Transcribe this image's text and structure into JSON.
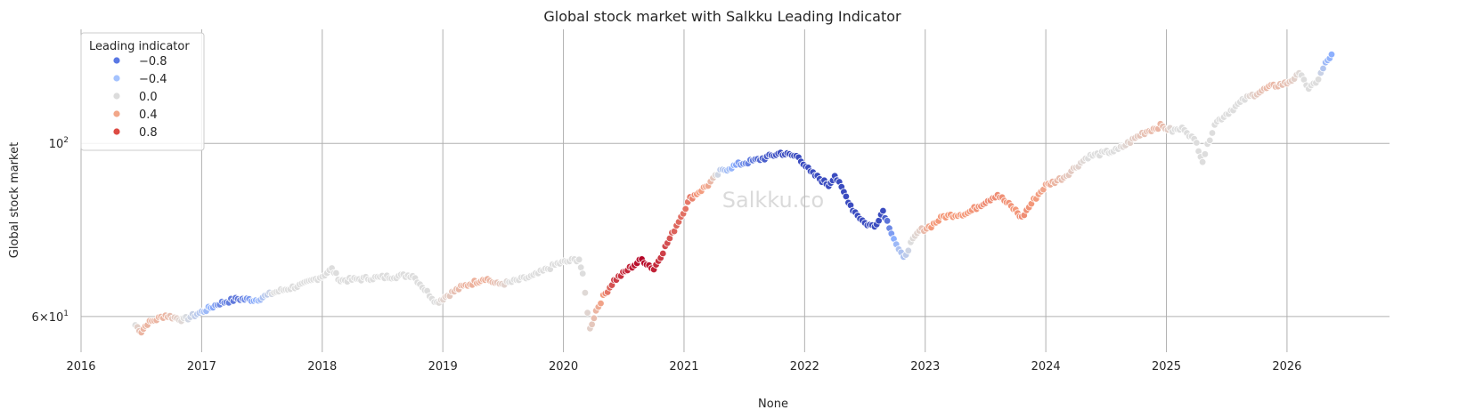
{
  "chart_data": {
    "type": "scatter",
    "title": "Global stock market with Salkku Leading Indicator",
    "xlabel": "None",
    "ylabel": "Global stock market",
    "y_scale": "log",
    "x_tick_labels": [
      "2016",
      "2017",
      "2018",
      "2019",
      "2020",
      "2021",
      "2022",
      "2023",
      "2024",
      "2025",
      "2026"
    ],
    "x_range_years": [
      2016.0,
      2026.85
    ],
    "y_range": [
      54,
      140
    ],
    "y_tick_values": [
      60,
      100
    ],
    "y_tick_labels": [
      {
        "base": "6",
        "times": "×",
        "ten": "10",
        "exp": "1"
      },
      {
        "base": "10",
        "exp": "2"
      }
    ],
    "grid": true,
    "legend": {
      "title": "Leading indicator",
      "placement": "top-left",
      "entries": [
        {
          "label": "−0.8",
          "value": -0.8,
          "color": "#5a78e4"
        },
        {
          "label": "−0.4",
          "value": -0.4,
          "color": "#a5c3fe"
        },
        {
          "label": "0.0",
          "value": 0.0,
          "color": "#dcdcdc"
        },
        {
          "label": "0.4",
          "value": 0.4,
          "color": "#f2a789"
        },
        {
          "label": "0.8",
          "value": 0.8,
          "color": "#dd4b43"
        }
      ]
    },
    "watermark": "Salkku.co",
    "color_scale": "coolwarm",
    "series_keyframes": [
      {
        "x": 2016.45,
        "y": 58.5,
        "indicator": 0.0
      },
      {
        "x": 2016.5,
        "y": 57.4,
        "indicator": 0.3
      },
      {
        "x": 2016.55,
        "y": 58.8,
        "indicator": 0.3
      },
      {
        "x": 2016.7,
        "y": 60.2,
        "indicator": 0.3
      },
      {
        "x": 2016.85,
        "y": 59.4,
        "indicator": 0.0
      },
      {
        "x": 2017.0,
        "y": 60.8,
        "indicator": -0.3
      },
      {
        "x": 2017.15,
        "y": 62.4,
        "indicator": -0.7
      },
      {
        "x": 2017.3,
        "y": 63.2,
        "indicator": -0.8
      },
      {
        "x": 2017.45,
        "y": 63.0,
        "indicator": -0.5
      },
      {
        "x": 2017.6,
        "y": 64.4,
        "indicator": 0.0
      },
      {
        "x": 2017.85,
        "y": 66.0,
        "indicator": 0.0
      },
      {
        "x": 2018.0,
        "y": 67.6,
        "indicator": 0.0
      },
      {
        "x": 2018.08,
        "y": 69.0,
        "indicator": 0.0
      },
      {
        "x": 2018.15,
        "y": 66.7,
        "indicator": 0.0
      },
      {
        "x": 2018.4,
        "y": 67.2,
        "indicator": 0.0
      },
      {
        "x": 2018.75,
        "y": 67.8,
        "indicator": 0.0
      },
      {
        "x": 2018.85,
        "y": 65.0,
        "indicator": 0.0
      },
      {
        "x": 2018.95,
        "y": 62.5,
        "indicator": 0.0
      },
      {
        "x": 2019.02,
        "y": 63.6,
        "indicator": 0.1
      },
      {
        "x": 2019.15,
        "y": 65.4,
        "indicator": 0.3
      },
      {
        "x": 2019.3,
        "y": 66.7,
        "indicator": 0.35
      },
      {
        "x": 2019.35,
        "y": 67.2,
        "indicator": 0.35
      },
      {
        "x": 2019.45,
        "y": 66.0,
        "indicator": 0.2
      },
      {
        "x": 2019.55,
        "y": 66.3,
        "indicator": 0.0
      },
      {
        "x": 2019.75,
        "y": 67.6,
        "indicator": 0.0
      },
      {
        "x": 2019.95,
        "y": 70.1,
        "indicator": 0.0
      },
      {
        "x": 2020.13,
        "y": 71.1,
        "indicator": 0.0
      },
      {
        "x": 2020.16,
        "y": 67.7,
        "indicator": 0.0
      },
      {
        "x": 2020.22,
        "y": 57.8,
        "indicator": 0.1
      },
      {
        "x": 2020.27,
        "y": 61.0,
        "indicator": 0.3
      },
      {
        "x": 2020.33,
        "y": 63.6,
        "indicator": 0.5
      },
      {
        "x": 2020.42,
        "y": 66.7,
        "indicator": 0.8
      },
      {
        "x": 2020.55,
        "y": 69.2,
        "indicator": 0.9
      },
      {
        "x": 2020.65,
        "y": 71.0,
        "indicator": 1.0
      },
      {
        "x": 2020.75,
        "y": 69.0,
        "indicator": 0.9
      },
      {
        "x": 2020.9,
        "y": 76.5,
        "indicator": 0.7
      },
      {
        "x": 2021.05,
        "y": 85.0,
        "indicator": 0.6
      },
      {
        "x": 2021.2,
        "y": 88.5,
        "indicator": 0.4
      },
      {
        "x": 2021.3,
        "y": 92.0,
        "indicator": -0.2
      },
      {
        "x": 2021.45,
        "y": 94.0,
        "indicator": -0.6
      },
      {
        "x": 2021.65,
        "y": 95.6,
        "indicator": -0.9
      },
      {
        "x": 2021.8,
        "y": 97.2,
        "indicator": -1.0
      },
      {
        "x": 2021.95,
        "y": 96.1,
        "indicator": -1.0
      },
      {
        "x": 2022.05,
        "y": 91.8,
        "indicator": -1.0
      },
      {
        "x": 2022.2,
        "y": 88.4,
        "indicator": -1.0
      },
      {
        "x": 2022.25,
        "y": 91.0,
        "indicator": -1.0
      },
      {
        "x": 2022.4,
        "y": 82.3,
        "indicator": -1.0
      },
      {
        "x": 2022.5,
        "y": 79.0,
        "indicator": -1.0
      },
      {
        "x": 2022.58,
        "y": 78.2,
        "indicator": -1.0
      },
      {
        "x": 2022.65,
        "y": 82.0,
        "indicator": -1.0
      },
      {
        "x": 2022.72,
        "y": 77.0,
        "indicator": -0.6
      },
      {
        "x": 2022.78,
        "y": 73.0,
        "indicator": -0.3
      },
      {
        "x": 2022.82,
        "y": 71.2,
        "indicator": -0.3
      },
      {
        "x": 2022.88,
        "y": 74.4,
        "indicator": 0.0
      },
      {
        "x": 2022.95,
        "y": 77.2,
        "indicator": 0.1
      },
      {
        "x": 2023.05,
        "y": 78.4,
        "indicator": 0.5
      },
      {
        "x": 2023.15,
        "y": 80.6,
        "indicator": 0.5
      },
      {
        "x": 2023.35,
        "y": 81.4,
        "indicator": 0.5
      },
      {
        "x": 2023.5,
        "y": 84.2,
        "indicator": 0.55
      },
      {
        "x": 2023.6,
        "y": 86.0,
        "indicator": 0.55
      },
      {
        "x": 2023.75,
        "y": 82.0,
        "indicator": 0.5
      },
      {
        "x": 2023.8,
        "y": 80.3,
        "indicator": 0.55
      },
      {
        "x": 2023.9,
        "y": 84.6,
        "indicator": 0.5
      },
      {
        "x": 2024.0,
        "y": 88.3,
        "indicator": 0.4
      },
      {
        "x": 2024.15,
        "y": 90.5,
        "indicator": 0.2
      },
      {
        "x": 2024.35,
        "y": 96.2,
        "indicator": 0.0
      },
      {
        "x": 2024.6,
        "y": 98.1,
        "indicator": 0.0
      },
      {
        "x": 2024.8,
        "y": 103.0,
        "indicator": 0.2
      },
      {
        "x": 2024.95,
        "y": 105.3,
        "indicator": 0.3
      },
      {
        "x": 2025.05,
        "y": 103.8,
        "indicator": 0.0
      },
      {
        "x": 2025.15,
        "y": 104.5,
        "indicator": 0.0
      },
      {
        "x": 2025.25,
        "y": 100.0,
        "indicator": 0.0
      },
      {
        "x": 2025.3,
        "y": 95.0,
        "indicator": 0.0
      },
      {
        "x": 2025.4,
        "y": 106.0,
        "indicator": 0.0
      },
      {
        "x": 2025.65,
        "y": 114.0,
        "indicator": 0.0
      },
      {
        "x": 2025.85,
        "y": 118.0,
        "indicator": 0.3
      },
      {
        "x": 2026.0,
        "y": 119.5,
        "indicator": 0.2
      },
      {
        "x": 2026.12,
        "y": 123.0,
        "indicator": 0.0
      },
      {
        "x": 2026.18,
        "y": 117.0,
        "indicator": 0.0
      },
      {
        "x": 2026.26,
        "y": 121.0,
        "indicator": 0.0
      },
      {
        "x": 2026.32,
        "y": 126.5,
        "indicator": -0.4
      },
      {
        "x": 2026.37,
        "y": 130.0,
        "indicator": -0.5
      }
    ]
  }
}
